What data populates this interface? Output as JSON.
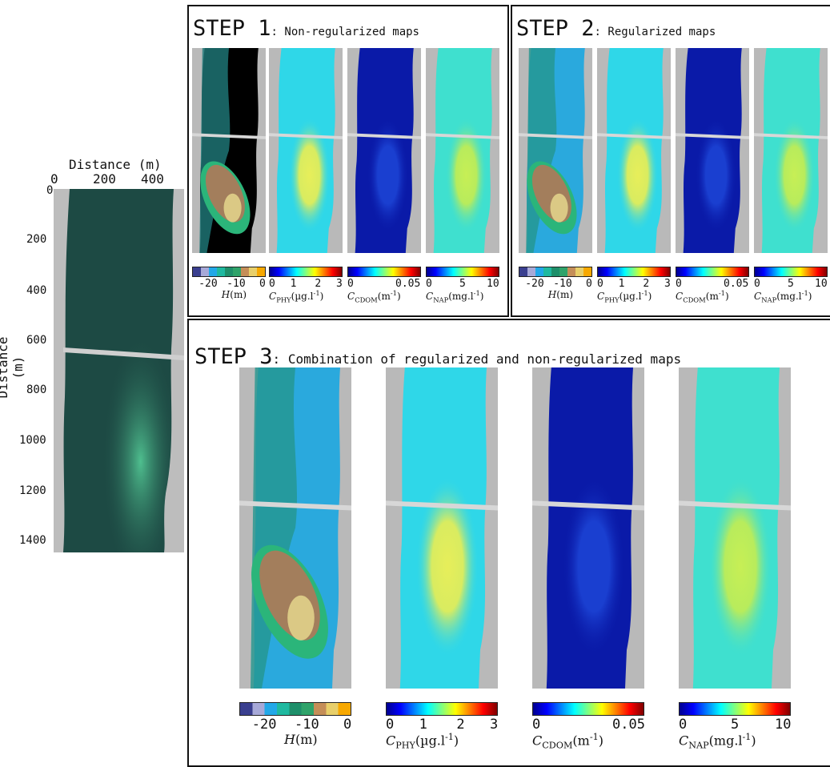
{
  "overview": {
    "x_axis_title": "Distance (m)",
    "y_axis_title": "Distance (m)",
    "x_ticks": [
      "0",
      "200",
      "400"
    ],
    "y_ticks": [
      "0",
      "200",
      "400",
      "600",
      "800",
      "1000",
      "1200",
      "1400"
    ]
  },
  "step1": {
    "title_big": "STEP 1",
    "title_small": ": Non-regularized maps"
  },
  "step2": {
    "title_big": "STEP 2",
    "title_small": ": Regularized maps"
  },
  "step3": {
    "title_big": "STEP 3",
    "title_small": ": Combination of regularized and non-regularized maps"
  },
  "colorbars": {
    "depth": {
      "ticks": [
        "-20",
        "-10",
        "0"
      ],
      "symbol": "H",
      "unit": "(m)",
      "colors": [
        "#3a3f8f",
        "#a7a9d8",
        "#22a8e8",
        "#1fb9a0",
        "#1e8f6a",
        "#2fa36a",
        "#c58e58",
        "#e8cf6a",
        "#f7a800"
      ]
    },
    "phy": {
      "ticks": [
        "0",
        "1",
        "2",
        "3"
      ],
      "symbol": "C",
      "sub": "PHY",
      "unit": "(µg.l",
      "unit_exp": "-1",
      "unit_end": ")"
    },
    "cdom": {
      "ticks": [
        "0",
        "0.05"
      ],
      "symbol": "C",
      "sub": "CDOM",
      "unit": "(m",
      "unit_exp": "-1",
      "unit_end": ")"
    },
    "nap": {
      "ticks": [
        "0",
        "5",
        "10"
      ],
      "symbol": "C",
      "sub": "NAP",
      "unit": "(mg.l",
      "unit_exp": "-1",
      "unit_end": ")"
    }
  },
  "colors": {
    "jet": [
      "#00008f",
      "#0000ff",
      "#0080ff",
      "#00ffff",
      "#80ff80",
      "#ffff00",
      "#ff8000",
      "#ff0000",
      "#800000"
    ],
    "river_dark": "#1d4a44",
    "bank": "#b9b9b9"
  }
}
